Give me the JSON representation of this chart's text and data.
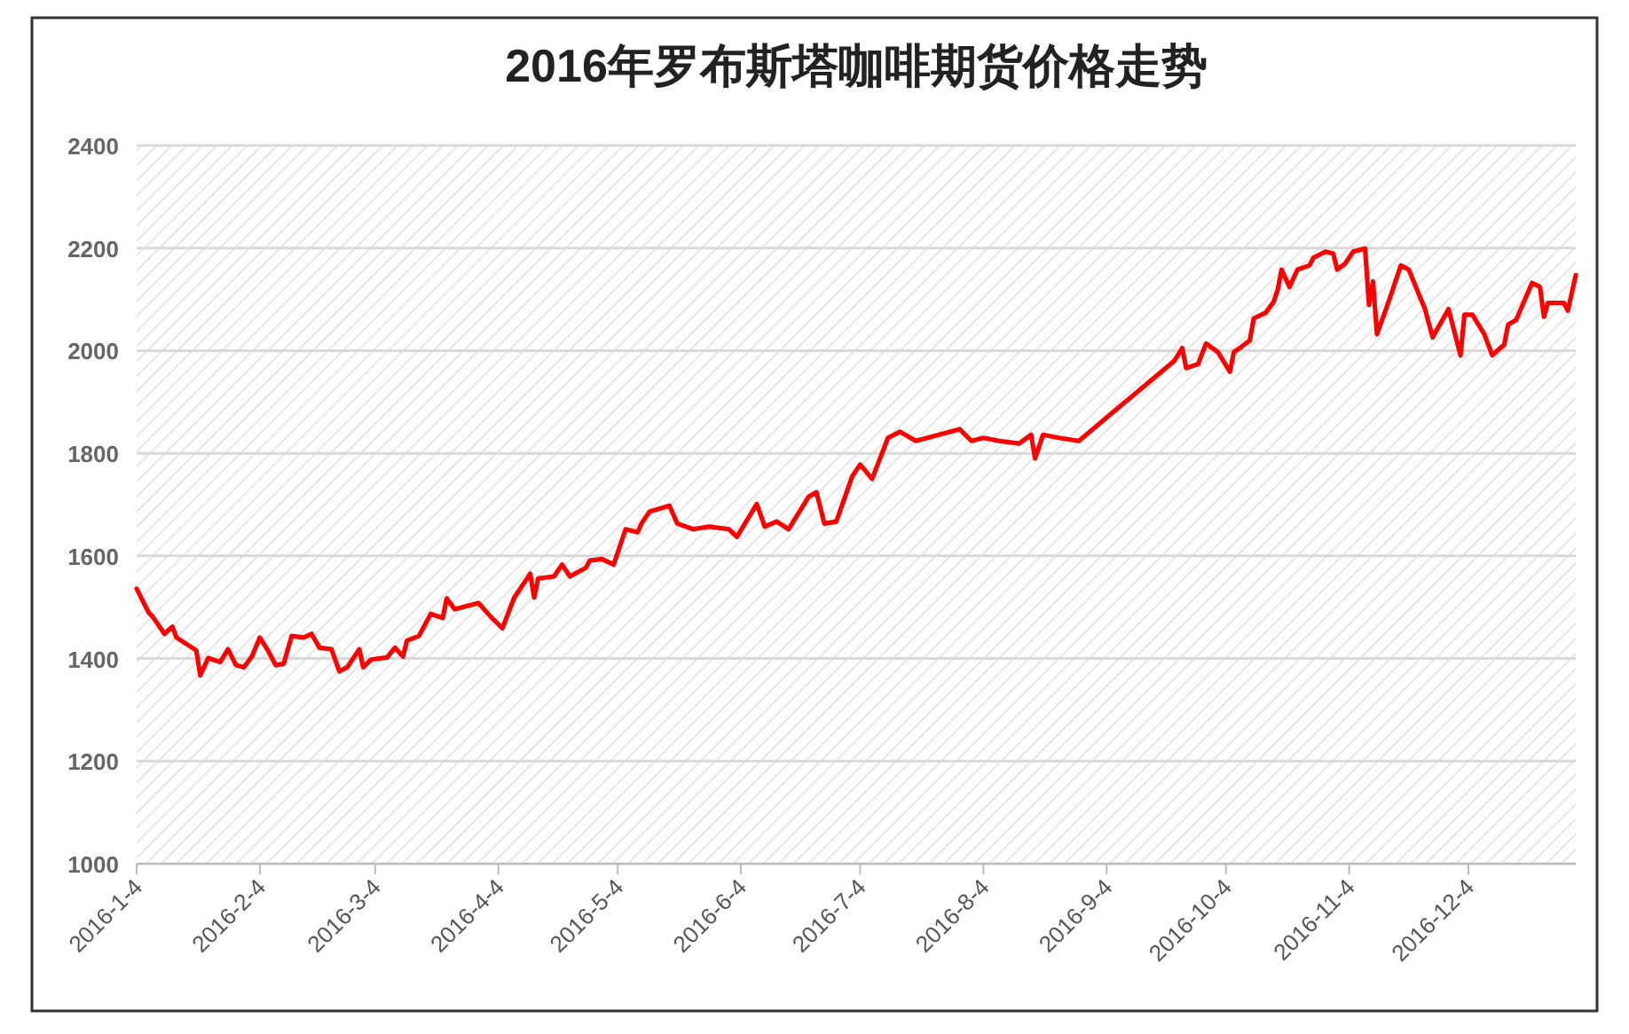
{
  "chart_data": {
    "type": "line",
    "title": "2016年罗布斯塔咖啡期货价格走势",
    "x": [
      "2016-01-04",
      "2016-01-07",
      "2016-01-08",
      "2016-01-11",
      "2016-01-13",
      "2016-01-14",
      "2016-01-19",
      "2016-01-20",
      "2016-01-22",
      "2016-01-25",
      "2016-01-27",
      "2016-01-29",
      "2016-01-31",
      "2016-02-02",
      "2016-02-04",
      "2016-02-06",
      "2016-02-08",
      "2016-02-10",
      "2016-02-12",
      "2016-02-15",
      "2016-02-17",
      "2016-02-19",
      "2016-02-22",
      "2016-02-24",
      "2016-02-26",
      "2016-02-29",
      "2016-03-01",
      "2016-03-03",
      "2016-03-07",
      "2016-03-09",
      "2016-03-11",
      "2016-03-12",
      "2016-03-15",
      "2016-03-18",
      "2016-03-21",
      "2016-03-22",
      "2016-03-24",
      "2016-03-30",
      "2016-04-02",
      "2016-04-05",
      "2016-04-08",
      "2016-04-12",
      "2016-04-13",
      "2016-04-14",
      "2016-04-18",
      "2016-04-20",
      "2016-04-22",
      "2016-04-26",
      "2016-04-27",
      "2016-04-30",
      "2016-05-03",
      "2016-05-06",
      "2016-05-09",
      "2016-05-10",
      "2016-05-12",
      "2016-05-17",
      "2016-05-19",
      "2016-05-23",
      "2016-05-27",
      "2016-06-01",
      "2016-06-03",
      "2016-06-08",
      "2016-06-10",
      "2016-06-13",
      "2016-06-16",
      "2016-06-21",
      "2016-06-23",
      "2016-06-25",
      "2016-06-28",
      "2016-07-02",
      "2016-07-04",
      "2016-07-07",
      "2016-07-09",
      "2016-07-11",
      "2016-07-14",
      "2016-07-18",
      "2016-07-29",
      "2016-08-01",
      "2016-08-04",
      "2016-08-08",
      "2016-08-13",
      "2016-08-16",
      "2016-08-17",
      "2016-08-19",
      "2016-08-23",
      "2016-08-28",
      "2016-09-21",
      "2016-09-23",
      "2016-09-24",
      "2016-09-27",
      "2016-09-29",
      "2016-10-02",
      "2016-10-05",
      "2016-10-06",
      "2016-10-08",
      "2016-10-10",
      "2016-10-11",
      "2016-10-14",
      "2016-10-16",
      "2016-10-17",
      "2016-10-18",
      "2016-10-20",
      "2016-10-22",
      "2016-10-25",
      "2016-10-26",
      "2016-10-29",
      "2016-10-31",
      "2016-11-01",
      "2016-11-03",
      "2016-11-05",
      "2016-11-08",
      "2016-11-09",
      "2016-11-10",
      "2016-11-11",
      "2016-11-14",
      "2016-11-17",
      "2016-11-19",
      "2016-11-22",
      "2016-11-23",
      "2016-11-25",
      "2016-11-29",
      "2016-12-02",
      "2016-12-03",
      "2016-12-05",
      "2016-12-08",
      "2016-12-10",
      "2016-12-13",
      "2016-12-14",
      "2016-12-16",
      "2016-12-20",
      "2016-12-22",
      "2016-12-23",
      "2016-12-24",
      "2016-12-28",
      "2016-12-29",
      "2016-12-31"
    ],
    "series": [
      {
        "color": "#ff0000",
        "values": [
          1536,
          1490,
          1482,
          1448,
          1462,
          1441,
          1416,
          1367,
          1401,
          1393,
          1418,
          1387,
          1383,
          1404,
          1441,
          1416,
          1387,
          1390,
          1444,
          1441,
          1448,
          1421,
          1418,
          1375,
          1383,
          1418,
          1383,
          1398,
          1402,
          1421,
          1404,
          1435,
          1444,
          1487,
          1479,
          1517,
          1496,
          1508,
          1482,
          1459,
          1519,
          1565,
          1519,
          1556,
          1560,
          1583,
          1560,
          1577,
          1591,
          1594,
          1583,
          1652,
          1646,
          1663,
          1686,
          1698,
          1663,
          1652,
          1657,
          1652,
          1637,
          1701,
          1657,
          1667,
          1652,
          1715,
          1724,
          1663,
          1667,
          1755,
          1778,
          1750,
          1790,
          1830,
          1842,
          1824,
          1847,
          1824,
          1830,
          1824,
          1819,
          1836,
          1790,
          1836,
          1830,
          1824,
          1980,
          2005,
          1966,
          1974,
          2014,
          1997,
          1959,
          1997,
          2008,
          2020,
          2063,
          2074,
          2095,
          2118,
          2158,
          2124,
          2158,
          2166,
          2181,
          2193,
          2189,
          2158,
          2170,
          2193,
          2199,
          2089,
          2135,
          2032,
          2097,
          2166,
          2158,
          2101,
          2083,
          2026,
          2081,
          1991,
          2070,
          2070,
          2032,
          1991,
          2012,
          2051,
          2060,
          2132,
          2124,
          2066,
          2093,
          2093,
          2078,
          2147
        ]
      }
    ],
    "xlim": [
      "2016-01-04",
      "2016-12-31"
    ],
    "xticks": [
      {
        "value": "2016-01-04",
        "label": "2016-1-4"
      },
      {
        "value": "2016-02-04",
        "label": "2016-2-4"
      },
      {
        "value": "2016-03-04",
        "label": "2016-3-4"
      },
      {
        "value": "2016-04-04",
        "label": "2016-4-4"
      },
      {
        "value": "2016-05-04",
        "label": "2016-5-4"
      },
      {
        "value": "2016-06-04",
        "label": "2016-6-4"
      },
      {
        "value": "2016-07-04",
        "label": "2016-7-4"
      },
      {
        "value": "2016-08-04",
        "label": "2016-8-4"
      },
      {
        "value": "2016-09-04",
        "label": "2016-9-4"
      },
      {
        "value": "2016-10-04",
        "label": "2016-10-4"
      },
      {
        "value": "2016-11-04",
        "label": "2016-11-4"
      },
      {
        "value": "2016-12-04",
        "label": "2016-12-4"
      }
    ],
    "ylim": [
      1000,
      2400
    ],
    "yticks": [
      1000,
      1200,
      1400,
      1600,
      1800,
      2000,
      2200,
      2400
    ],
    "grid": "y",
    "marker": "none",
    "line_style": "solid"
  }
}
